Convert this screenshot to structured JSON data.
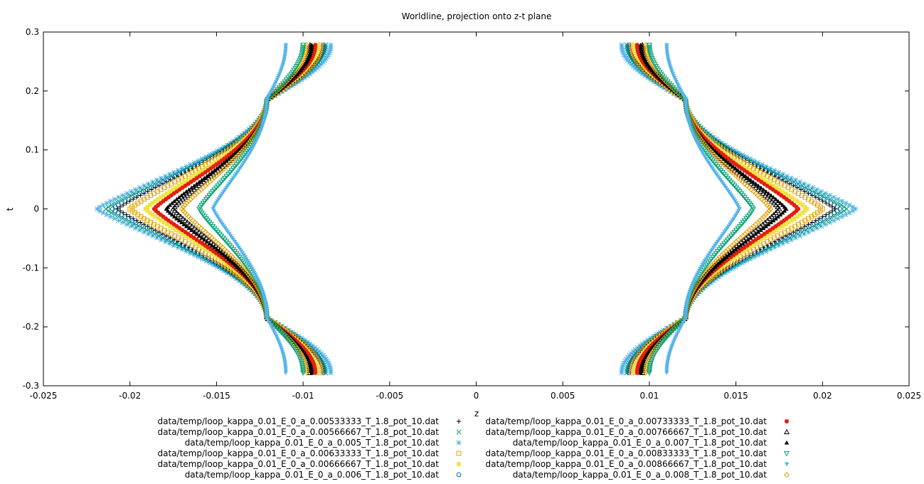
{
  "chart_data": {
    "type": "scatter",
    "title": "Worldline, projection onto z-t plane",
    "xlabel": "z",
    "ylabel": "t",
    "xlim": [
      -0.025,
      0.025
    ],
    "ylim": [
      -0.3,
      0.3
    ],
    "x_ticks": [
      "-0.025",
      "-0.02",
      "-0.015",
      "-0.01",
      "-0.005",
      "0",
      "0.005",
      "0.01",
      "0.015",
      "0.02",
      "0.025"
    ],
    "y_ticks": [
      "0.3",
      "0.2",
      "0.1",
      "0",
      "-0.1",
      "-0.2",
      "-0.3"
    ],
    "grid": false,
    "legend_position": "bottom, two columns",
    "t_extent": [
      -0.278,
      0.278
    ],
    "crossing_point": {
      "z": 0.0121,
      "t": 0.185
    },
    "series": [
      {
        "name": "data/temp/loop_kappa_0.01_E_0_a_0.00533333_T_1.8_pot_10.dat",
        "marker": "plus",
        "color": "#000000",
        "z_at_t0": 0.0207,
        "z_at_t_end": 0.0089
      },
      {
        "name": "data/temp/loop_kappa_0.01_E_0_a_0.00566667_T_1.8_pot_10.dat",
        "marker": "cross",
        "color": "#009e73",
        "z_at_t0": 0.0214,
        "z_at_t_end": 0.0087
      },
      {
        "name": "data/temp/loop_kappa_0.01_E_0_a_0.005_T_1.8_pot_10.dat",
        "marker": "star",
        "color": "#56b4e9",
        "z_at_t0": 0.0219,
        "z_at_t_end": 0.0084
      },
      {
        "name": "data/temp/loop_kappa_0.01_E_0_a_0.00633333_T_1.8_pot_10.dat",
        "marker": "square-open",
        "color": "#e69f00",
        "z_at_t0": 0.02,
        "z_at_t_end": 0.009
      },
      {
        "name": "data/temp/loop_kappa_0.01_E_0_a_0.00666667_T_1.8_pot_10.dat",
        "marker": "square-filled",
        "color": "#f0e442",
        "z_at_t0": 0.0191,
        "z_at_t_end": 0.0092
      },
      {
        "name": "data/temp/loop_kappa_0.01_E_0_a_0.006_T_1.8_pot_10.dat",
        "marker": "circle-open",
        "color": "#0072b2",
        "z_at_t0": 0.021,
        "z_at_t_end": 0.0088
      },
      {
        "name": "data/temp/loop_kappa_0.01_E_0_a_0.00733333_T_1.8_pot_10.dat",
        "marker": "circle-filled",
        "color": "#e51e10",
        "z_at_t0": 0.0186,
        "z_at_t_end": 0.0093
      },
      {
        "name": "data/temp/loop_kappa_0.01_E_0_a_0.00766667_T_1.8_pot_10.dat",
        "marker": "triangle-open",
        "color": "#000000",
        "z_at_t0": 0.0175,
        "z_at_t_end": 0.0096
      },
      {
        "name": "data/temp/loop_kappa_0.01_E_0_a_0.007_T_1.8_pot_10.dat",
        "marker": "triangle-filled",
        "color": "#000000",
        "z_at_t0": 0.0179,
        "z_at_t_end": 0.0095
      },
      {
        "name": "data/temp/loop_kappa_0.01_E_0_a_0.00833333_T_1.8_pot_10.dat",
        "marker": "triangle-down-open",
        "color": "#009e73",
        "z_at_t0": 0.016,
        "z_at_t_end": 0.01
      },
      {
        "name": "data/temp/loop_kappa_0.01_E_0_a_0.00866667_T_1.8_pot_10.dat",
        "marker": "triangle-down-filled",
        "color": "#56b4e9",
        "z_at_t0": 0.0152,
        "z_at_t_end": 0.011
      },
      {
        "name": "data/temp/loop_kappa_0.01_E_0_a_0.008_T_1.8_pot_10.dat",
        "marker": "diamond-open",
        "color": "#e69f00",
        "z_at_t0": 0.017,
        "z_at_t_end": 0.0098
      }
    ]
  }
}
